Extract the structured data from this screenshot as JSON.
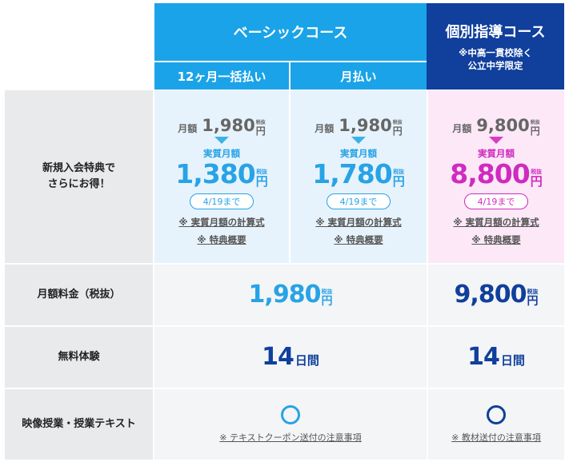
{
  "header": {
    "basic_course": "ベーシックコース",
    "individual_course": "個別指導コース",
    "individual_note1": "※中高一貫校除く",
    "individual_note2": "公立中学限定",
    "basic_annual": "12ヶ月一括払い",
    "basic_monthly": "月払い"
  },
  "rows": {
    "campaign_label_1": "新規入会特典で",
    "campaign_label_2": "さらにお得！",
    "fee_label": "月額料金（税抜）",
    "trial_label": "無料体験",
    "video_label": "映像授業・授業テキスト"
  },
  "campaign": {
    "monthly_prefix": "月額",
    "effective_label": "実質月額",
    "yen": "円",
    "tax_note": "税抜",
    "calc_link": "※ 実質月額の計算式",
    "summary_link": "※ 特典概要",
    "annual": {
      "base": "1,980",
      "effective": "1,380",
      "deadline": "4/19まで"
    },
    "monthly": {
      "base": "1,980",
      "effective": "1,780",
      "deadline": "4/19まで"
    },
    "individual": {
      "base": "9,800",
      "effective": "8,800",
      "deadline": "4/19まで"
    }
  },
  "fee": {
    "basic": "1,980",
    "individual": "9,800",
    "yen": "円",
    "tax_note": "税抜"
  },
  "trial": {
    "basic_num": "14",
    "individual_num": "14",
    "unit": "日間"
  },
  "video": {
    "basic_note": "※ テキストクーポン送付の注意事項",
    "individual_note": "※ 教材送付の注意事項"
  },
  "colors": {
    "basic": "#1aa3e8",
    "individual": "#103f9c",
    "campaign_pink": "#cf2bbf"
  }
}
